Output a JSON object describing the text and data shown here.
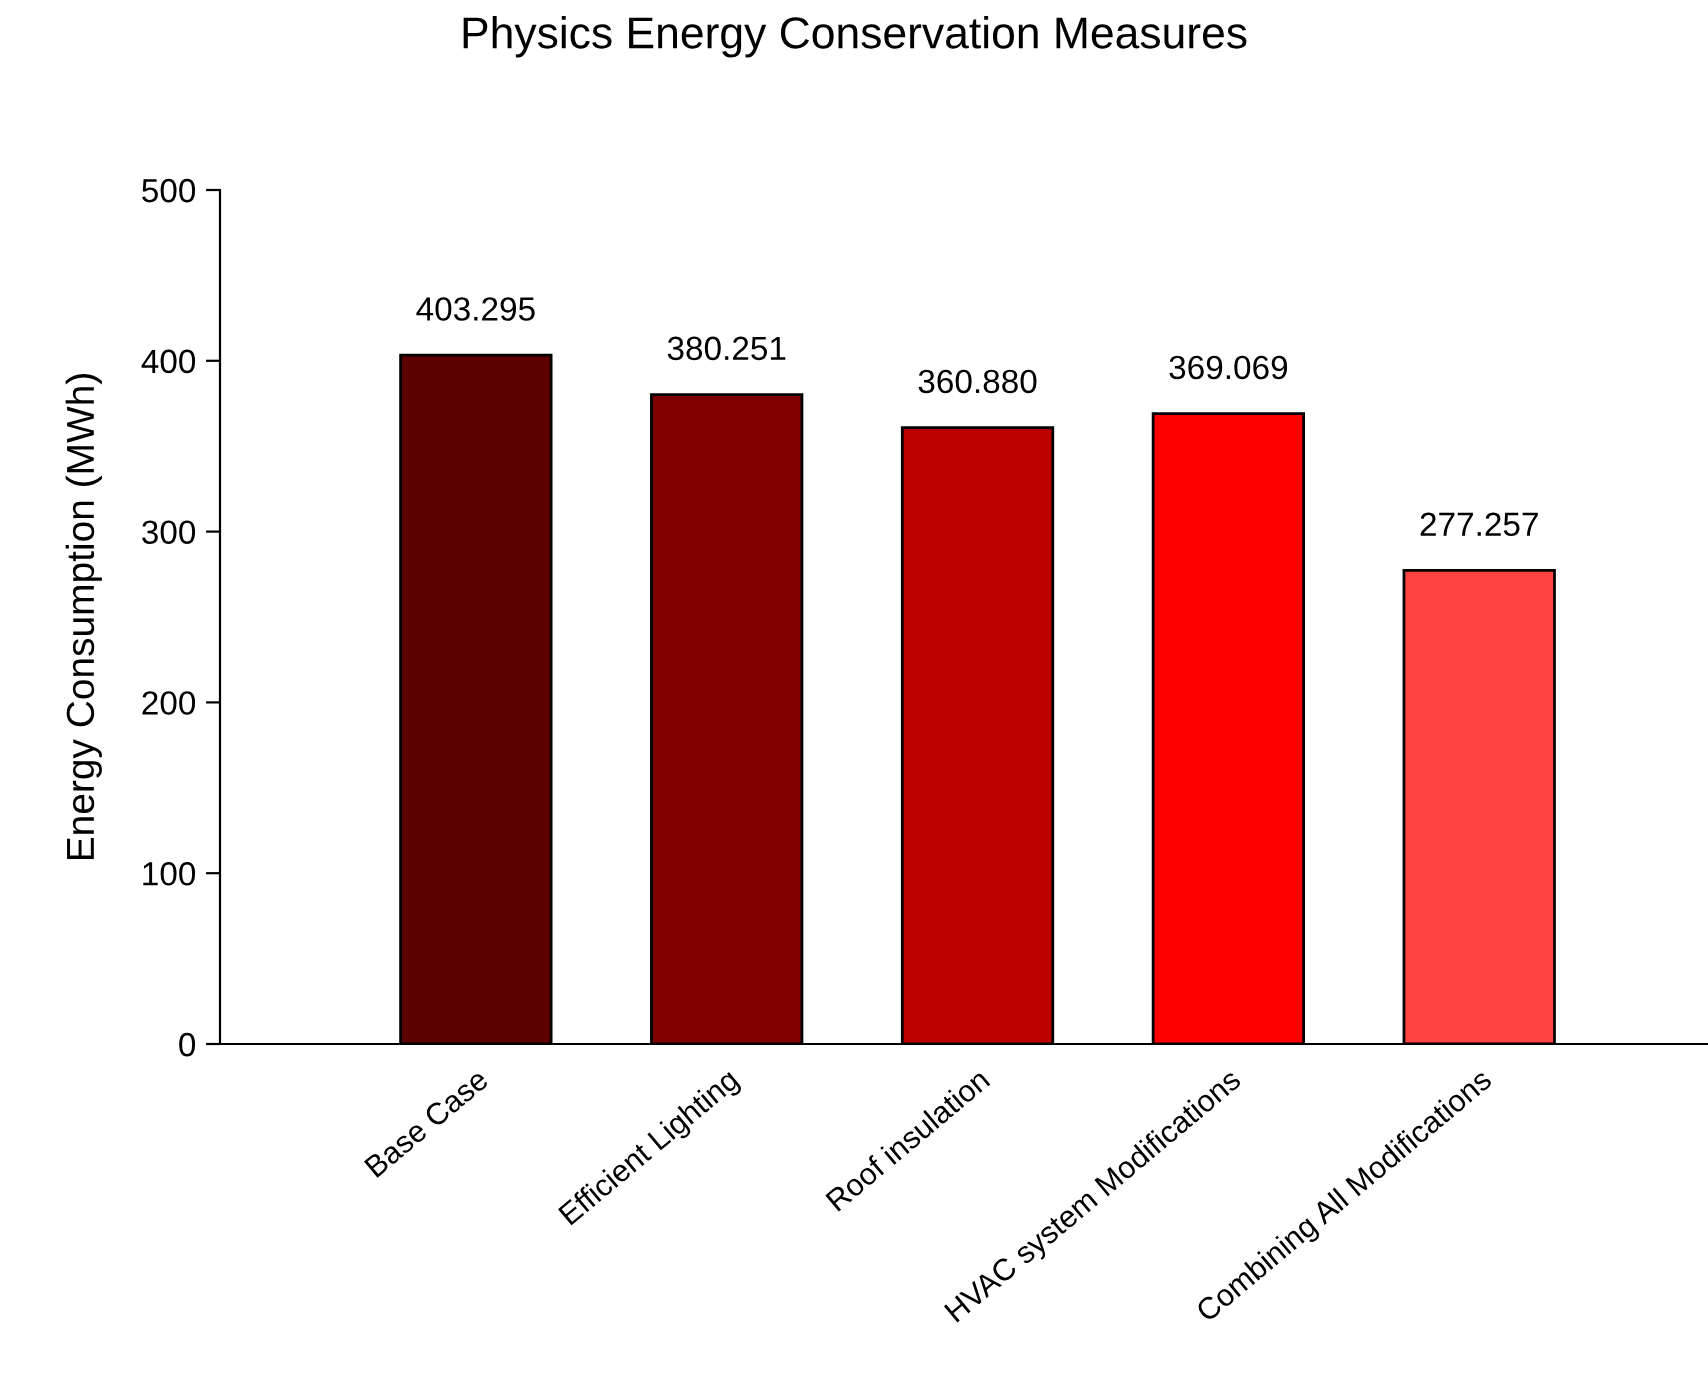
{
  "chart_data": {
    "type": "bar",
    "title": "Physics Energy Conservation Measures",
    "ylabel": "Energy Consumption (MWh)",
    "categories": [
      "Base Case",
      "Efficient Lighting",
      "Roof insulation",
      "HVAC system Modifications",
      "Combining All Modifications"
    ],
    "values": [
      403.295,
      380.251,
      360.88,
      369.069,
      277.257
    ],
    "colors": [
      "#5e0000",
      "#800000",
      "#ba0000",
      "#ff0000",
      "#ff4242"
    ],
    "value_labels": [
      "403.295",
      "380.251",
      "360.880",
      "369.069",
      "277.257"
    ],
    "ylim": [
      0,
      500
    ],
    "yticks": [
      0,
      100,
      200,
      300,
      400,
      500
    ],
    "grid": false,
    "legend": false
  }
}
